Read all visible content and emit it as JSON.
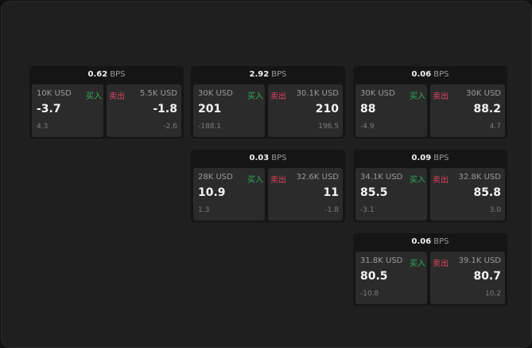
{
  "unit": "BPS",
  "buy_label": "买入",
  "sell_label": "卖出",
  "colors": {
    "buy": "#2fae5c",
    "sell": "#e2445c",
    "background": "#1f1f1f",
    "panel": "#2b2b2b"
  },
  "cards": [
    {
      "spread": "0.62",
      "buy": {
        "amount": "10K USD",
        "price": "-3.7",
        "diff": "4.3"
      },
      "sell": {
        "amount": "5.5K USD",
        "price": "-1.8",
        "diff": "-2.6"
      }
    },
    {
      "spread": "2.92",
      "buy": {
        "amount": "30K USD",
        "price": "201",
        "diff": "-188.1"
      },
      "sell": {
        "amount": "30.1K USD",
        "price": "210",
        "diff": "196.5"
      }
    },
    {
      "spread": "0.06",
      "buy": {
        "amount": "30K USD",
        "price": "88",
        "diff": "-4.9"
      },
      "sell": {
        "amount": "30K USD",
        "price": "88.2",
        "diff": "4.7"
      }
    },
    {
      "spread": "0.03",
      "buy": {
        "amount": "28K USD",
        "price": "10.9",
        "diff": "1.3"
      },
      "sell": {
        "amount": "32.6K USD",
        "price": "11",
        "diff": "-1.8"
      }
    },
    {
      "spread": "0.09",
      "buy": {
        "amount": "34.1K USD",
        "price": "85.5",
        "diff": "-3.1"
      },
      "sell": {
        "amount": "32.8K USD",
        "price": "85.8",
        "diff": "3.0"
      }
    },
    {
      "spread": "0.06",
      "buy": {
        "amount": "31.8K USD",
        "price": "80.5",
        "diff": "-10.8"
      },
      "sell": {
        "amount": "39.1K USD",
        "price": "80.7",
        "diff": "10.2"
      }
    }
  ]
}
